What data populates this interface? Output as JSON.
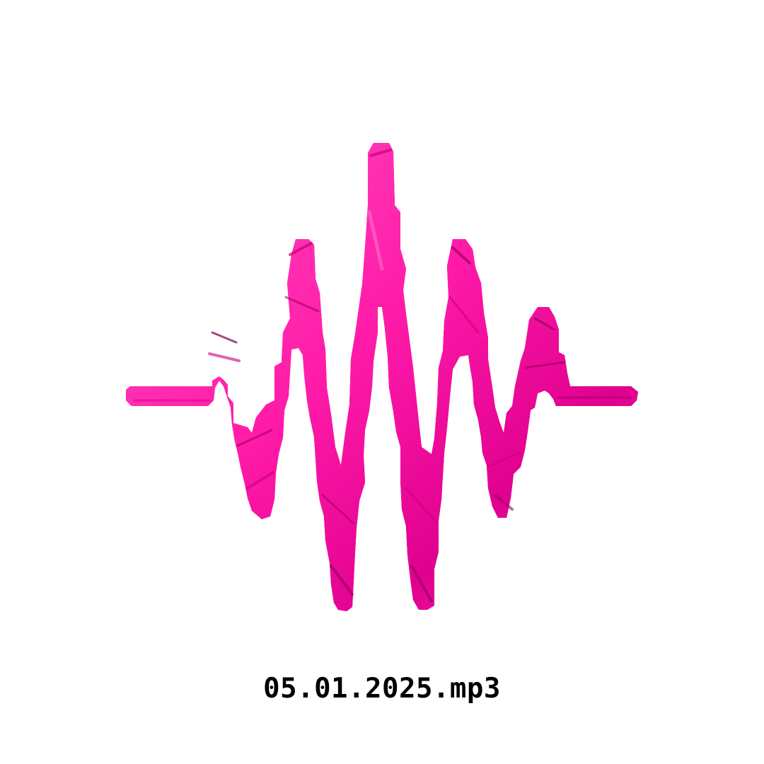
{
  "file": {
    "name": "05.01.2025.mp3"
  },
  "waveform": {
    "icon": "audio-waveform-icon",
    "colors": {
      "main": "#ff1aa8",
      "light": "#ff4fbf",
      "dark": "#c8007a",
      "shadow": "#7a0046"
    }
  }
}
